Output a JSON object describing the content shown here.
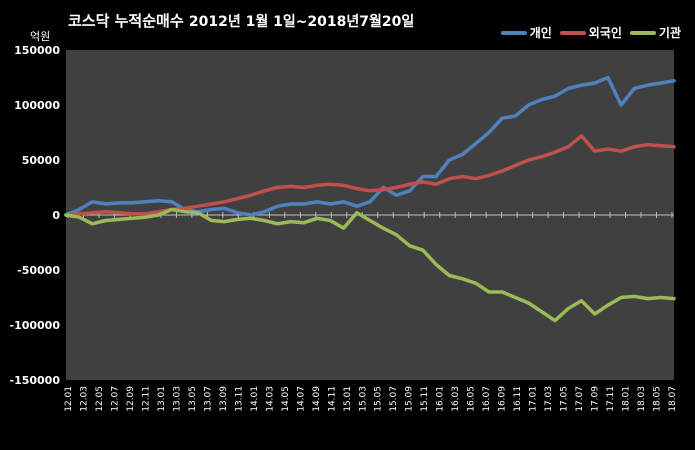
{
  "chart_data": {
    "type": "line",
    "title": "코스닥  누적순매수",
    "subtitle": "2012년 1월 1일~2018년7월20일",
    "ylabel": "억원",
    "ylim": [
      -150000,
      150000
    ],
    "yticks": [
      -150000,
      -100000,
      -50000,
      0,
      50000,
      100000,
      150000
    ],
    "ytick_labels": [
      "-150000",
      "-100000",
      "-50000",
      "0",
      "50000",
      "100000",
      "150000"
    ],
    "xtick_labels": [
      "12.01",
      "12.03",
      "12.05",
      "12.07",
      "12.09",
      "12.11",
      "13.01",
      "13.03",
      "13.05",
      "13.07",
      "13.09",
      "13.11",
      "14.01",
      "14.03",
      "14.05",
      "14.07",
      "14.09",
      "14.11",
      "15.01",
      "15.03",
      "15.05",
      "15.07",
      "15.09",
      "15.11",
      "16.01",
      "16.03",
      "16.05",
      "16.07",
      "16.09",
      "16.11",
      "17.01",
      "17.03",
      "17.05",
      "17.07",
      "17.09",
      "17.11",
      "18.01",
      "18.03",
      "18.05",
      "18.07"
    ],
    "legend_position": "top-right",
    "series": [
      {
        "name": "개인",
        "color": "#4F81BD",
        "values": [
          0,
          5000,
          12000,
          10000,
          11000,
          11000,
          12000,
          13000,
          12000,
          5000,
          3000,
          5000,
          6000,
          2000,
          0,
          3000,
          8000,
          10000,
          10000,
          12000,
          10000,
          12000,
          8000,
          12000,
          25000,
          18000,
          22000,
          35000,
          35000,
          50000,
          55000,
          65000,
          75000,
          88000,
          90000,
          100000,
          105000,
          108000,
          115000,
          118000,
          120000,
          125000,
          100000,
          115000,
          118000,
          120000,
          122000
        ]
      },
      {
        "name": "외국인",
        "color": "#C0504D",
        "values": [
          0,
          1000,
          2000,
          3000,
          2000,
          1000,
          1000,
          3000,
          5000,
          6000,
          8000,
          10000,
          12000,
          15000,
          18000,
          22000,
          25000,
          26000,
          25000,
          27000,
          28000,
          27000,
          24000,
          22000,
          23000,
          25000,
          28000,
          30000,
          28000,
          33000,
          35000,
          33000,
          36000,
          40000,
          45000,
          50000,
          53000,
          57000,
          62000,
          72000,
          58000,
          60000,
          58000,
          62000,
          64000,
          63000,
          62000
        ]
      },
      {
        "name": "기관",
        "color": "#9BBB59",
        "values": [
          0,
          -2000,
          -8000,
          -5000,
          -4000,
          -3000,
          -2000,
          0,
          5000,
          3000,
          2000,
          -5000,
          -6000,
          -4000,
          -3000,
          -5000,
          -8000,
          -6000,
          -7000,
          -3000,
          -5000,
          -12000,
          2000,
          -5000,
          -12000,
          -18000,
          -28000,
          -32000,
          -45000,
          -55000,
          -58000,
          -62000,
          -70000,
          -70000,
          -75000,
          -80000,
          -88000,
          -96000,
          -85000,
          -78000,
          -90000,
          -82000,
          -75000,
          -74000,
          -76000,
          -75000,
          -76000
        ]
      }
    ]
  }
}
